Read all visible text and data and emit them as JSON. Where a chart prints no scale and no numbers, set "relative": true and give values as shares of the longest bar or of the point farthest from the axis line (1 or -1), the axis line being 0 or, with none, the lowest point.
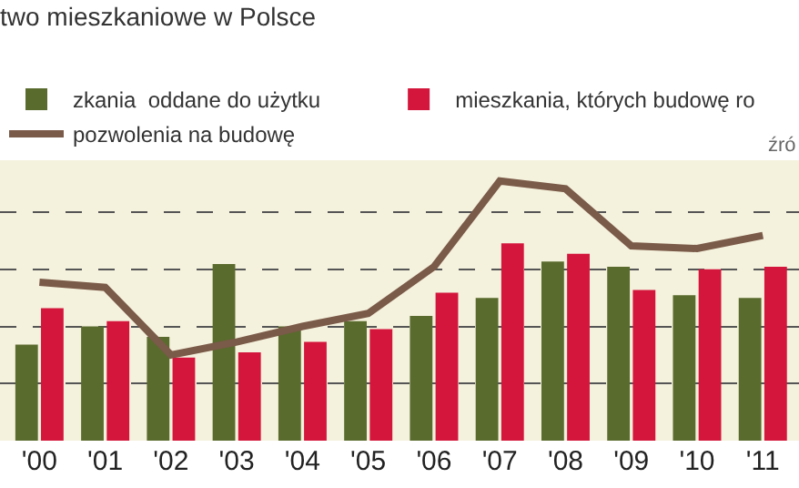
{
  "chart_data": {
    "type": "bar",
    "title": "two mieszkaniowe w Polsce",
    "relative": true,
    "grid": "y",
    "legend": "top",
    "annotations": [
      "źró"
    ],
    "categories": [
      "'00",
      "'01",
      "'02",
      "'03",
      "'04",
      "'05",
      "'06",
      "'07",
      "'08",
      "'09",
      "'10",
      "'11"
    ],
    "series": [
      {
        "name": "zkania  oddane do użytku",
        "color": "#5a6b2e",
        "values": [
          0.37,
          0.44,
          0.4,
          0.68,
          0.44,
          0.46,
          0.48,
          0.55,
          0.69,
          0.67,
          0.56,
          0.55
        ]
      },
      {
        "name": "mieszkania, których budowę ro",
        "color": "#d4163c",
        "values": [
          0.51,
          0.46,
          0.32,
          0.34,
          0.38,
          0.43,
          0.57,
          0.76,
          0.72,
          0.58,
          0.66,
          0.67
        ]
      },
      {
        "name": "pozwolenia na budowę",
        "type": "line",
        "color": "#7a5a48",
        "values": [
          0.61,
          0.59,
          0.33,
          0.38,
          0.44,
          0.49,
          0.67,
          1.0,
          0.97,
          0.75,
          0.74,
          0.79
        ]
      }
    ]
  }
}
